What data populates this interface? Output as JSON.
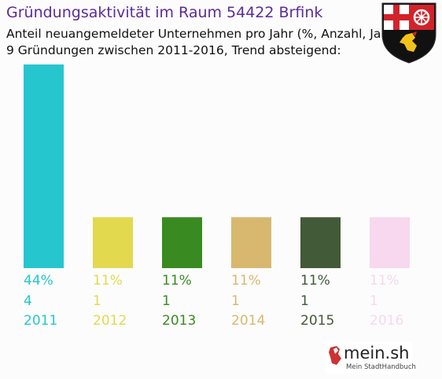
{
  "header": {
    "title": "Gründungsaktivität im Raum 54422 Brfink",
    "subtitle_line1": "Anteil neuangemeldeter Unternehmen pro Jahr (%, Anzahl, Jahr)",
    "subtitle_line2": "9 Gründungen zwischen 2011-2016, Trend absteigend:"
  },
  "branding": {
    "logo_text": "mein.sh",
    "logo_subtext": "Mein StadtHandbuch"
  },
  "chart_data": {
    "type": "bar",
    "categories": [
      "2011",
      "2012",
      "2013",
      "2014",
      "2015",
      "2016"
    ],
    "values": [
      44,
      11,
      11,
      11,
      11,
      11
    ],
    "value_labels": [
      "44%",
      "11%",
      "11%",
      "11%",
      "11%",
      "11%"
    ],
    "counts": [
      "4",
      "1",
      "1",
      "1",
      "1",
      "1"
    ],
    "colors": [
      "#26c6cf",
      "#e3d94f",
      "#3a8a22",
      "#d8b86f",
      "#435a38",
      "#f7d8ee"
    ],
    "title": "Gründungsaktivität im Raum 54422 Brfink",
    "xlabel": "",
    "ylabel": "",
    "ylim": [
      0,
      44
    ],
    "grid": false,
    "legend": "none"
  }
}
